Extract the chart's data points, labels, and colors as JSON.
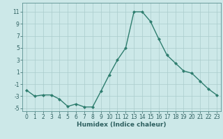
{
  "x": [
    0,
    1,
    2,
    3,
    4,
    5,
    6,
    7,
    8,
    9,
    10,
    11,
    12,
    13,
    14,
    15,
    16,
    17,
    18,
    19,
    20,
    21,
    22,
    23
  ],
  "y": [
    -2,
    -3,
    -2.8,
    -2.8,
    -3.5,
    -4.7,
    -4.3,
    -4.8,
    -4.8,
    -2.2,
    0.5,
    3.0,
    5.0,
    11.0,
    11.0,
    9.4,
    6.5,
    3.8,
    2.5,
    1.2,
    0.8,
    -0.5,
    -1.8,
    -2.8
  ],
  "line_color": "#2e7d6e",
  "bg_color": "#cce8e8",
  "grid_color": "#aacccc",
  "xlabel": "Humidex (Indice chaleur)",
  "ylabel": "",
  "xlim": [
    -0.5,
    23.5
  ],
  "ylim": [
    -5.5,
    12.5
  ],
  "yticks": [
    -5,
    -3,
    -1,
    1,
    3,
    5,
    7,
    9,
    11
  ],
  "xticks": [
    0,
    1,
    2,
    3,
    4,
    5,
    6,
    7,
    8,
    9,
    10,
    11,
    12,
    13,
    14,
    15,
    16,
    17,
    18,
    19,
    20,
    21,
    22,
    23
  ],
  "marker": "D",
  "marker_size": 2.0,
  "linewidth": 1.0,
  "xlabel_fontsize": 6.5,
  "tick_fontsize": 5.5,
  "tick_color": "#2e6060",
  "spine_color": "#5a9090"
}
